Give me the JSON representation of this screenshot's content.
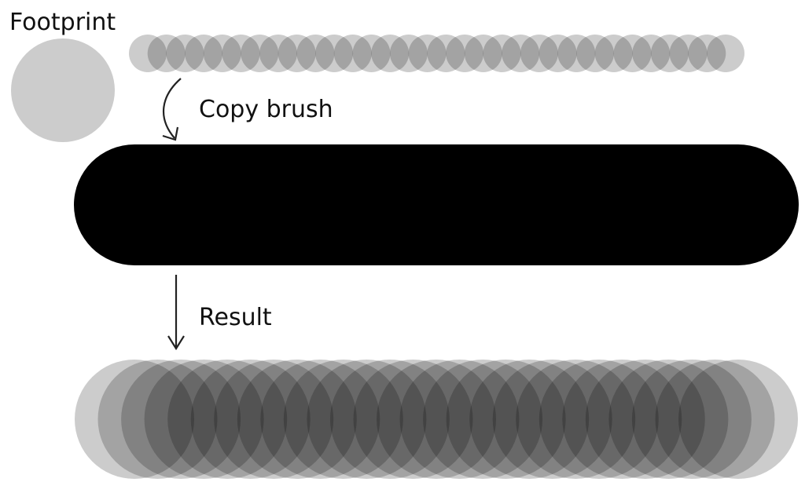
{
  "labels": {
    "footprint": "Footprint",
    "copy_brush": "Copy brush",
    "result": "Result"
  },
  "colors": {
    "footprint_fill": "#cccccc",
    "stroke_black": "#000000",
    "arrow": "#222222",
    "text": "#111111"
  },
  "footprint_stamp_opacity": 0.2,
  "result_stamp_opacity": 0.2
}
